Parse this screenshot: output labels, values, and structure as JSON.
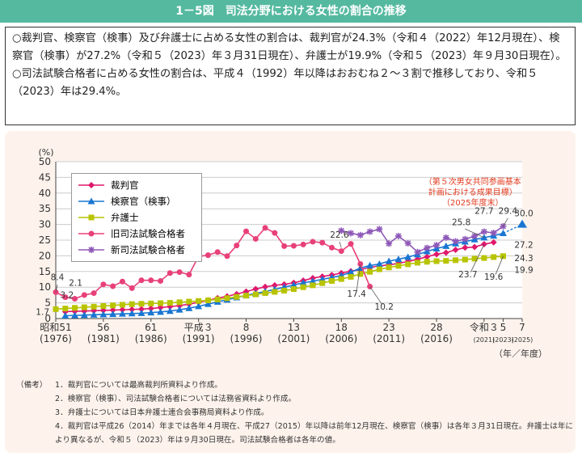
{
  "title": "1－5図　司法分野における女性の割合の推移",
  "summary": [
    "○裁判官、検察官（検事）及び弁護士に占める女性の割合は、裁判官が24.3%（令和４（2022）年12月現在）、検察官（検事）が27.2%（令和５（2023）年３月31日現在）、弁護士が19.9%（令和５（2023）年９月30日現在）。",
    "○司法試験合格者に占める女性の割合は、平成４（1992）年以降はおおむね２～３割で推移しており、令和５（2023）年は29.4%。"
  ],
  "notes": {
    "head": "（備考）",
    "items": [
      "1．裁判官については最高裁判所資料より作成。",
      "2．検察官（検事）、司法試験合格者については法務省資料より作成。",
      "3．弁護士については日本弁護士連合会事務局資料より作成。",
      "4．裁判官は平成26（2014）年までは各年４月現在、平成27（2015）年以降は前年12月現在、検察官（検事）は各年３月31日現在。弁護士は年により異なるが、令和５（2023）年は９月30日現在。司法試験合格者は各年の値。"
    ]
  },
  "chart_data": {
    "type": "line",
    "ylabel": "(%)",
    "xlabel": "（年／年度）",
    "ylim": [
      0,
      50
    ],
    "yticks": [
      0,
      5,
      10,
      15,
      20,
      25,
      30,
      35,
      40,
      45,
      50
    ],
    "xlim": [
      1976,
      2025
    ],
    "xticks": [
      {
        "x": 1976,
        "top": "昭和51",
        "bottom": "(1976)"
      },
      {
        "x": 1981,
        "top": "56",
        "bottom": "(1981)"
      },
      {
        "x": 1986,
        "top": "61",
        "bottom": "(1986)"
      },
      {
        "x": 1991,
        "top": "平成３",
        "bottom": "(1991)"
      },
      {
        "x": 1996,
        "top": "8",
        "bottom": "(1996)"
      },
      {
        "x": 2001,
        "top": "13",
        "bottom": "(2001)"
      },
      {
        "x": 2006,
        "top": "18",
        "bottom": "(2006)"
      },
      {
        "x": 2011,
        "top": "23",
        "bottom": "(2011)"
      },
      {
        "x": 2016,
        "top": "28",
        "bottom": "(2016)"
      },
      {
        "x": 2021,
        "top": "令和３",
        "bottom": "(2021)"
      },
      {
        "x": 2023,
        "top": "5",
        "bottom": "(2023)"
      },
      {
        "x": 2025,
        "top": "7",
        "bottom": "(2025)"
      }
    ],
    "series": [
      {
        "name": "裁判官",
        "color": "#e0186c",
        "marker": "diamond",
        "x": [
          1977,
          1978,
          1979,
          1980,
          1981,
          1982,
          1983,
          1984,
          1985,
          1986,
          1987,
          1988,
          1989,
          1990,
          1991,
          1992,
          1993,
          1994,
          1995,
          1996,
          1997,
          1998,
          1999,
          2000,
          2001,
          2002,
          2003,
          2004,
          2005,
          2006,
          2007,
          2008,
          2009,
          2010,
          2011,
          2012,
          2013,
          2014,
          2015,
          2016,
          2017,
          2018,
          2019,
          2020,
          2021,
          2022
        ],
        "values": [
          2.2,
          2.3,
          2.4,
          2.5,
          2.6,
          2.7,
          2.8,
          2.9,
          3.0,
          3.2,
          3.5,
          3.8,
          4.1,
          4.6,
          5.2,
          5.8,
          6.5,
          7.1,
          7.8,
          8.6,
          9.4,
          10.1,
          10.6,
          10.9,
          11.4,
          12.1,
          12.9,
          13.4,
          13.9,
          14.5,
          15.1,
          15.6,
          16.3,
          16.8,
          17.1,
          17.6,
          18.2,
          18.9,
          19.7,
          20.5,
          21.0,
          21.9,
          22.6,
          22.8,
          23.7,
          24.3
        ]
      },
      {
        "name": "検察官（検事）",
        "color": "#1976d2",
        "marker": "triangle",
        "x": [
          1977,
          1978,
          1979,
          1980,
          1981,
          1982,
          1983,
          1984,
          1985,
          1986,
          1987,
          1988,
          1989,
          1990,
          1991,
          1992,
          1993,
          1994,
          1995,
          1996,
          1997,
          1998,
          1999,
          2000,
          2001,
          2002,
          2003,
          2004,
          2005,
          2006,
          2007,
          2008,
          2009,
          2010,
          2011,
          2012,
          2013,
          2014,
          2015,
          2016,
          2017,
          2018,
          2019,
          2020,
          2021,
          2022,
          2023
        ],
        "values": [
          0.9,
          1.0,
          1.1,
          1.2,
          1.3,
          1.4,
          1.5,
          1.6,
          1.7,
          1.9,
          2.1,
          2.4,
          2.8,
          3.3,
          3.9,
          4.6,
          5.3,
          6.0,
          6.7,
          7.4,
          8.0,
          8.6,
          9.3,
          10.0,
          10.7,
          11.4,
          11.9,
          12.5,
          13.1,
          13.7,
          14.8,
          16.1,
          16.9,
          17.4,
          18.3,
          18.9,
          19.6,
          20.4,
          21.4,
          22.3,
          23.1,
          23.9,
          24.5,
          25.2,
          25.8,
          26.4,
          27.2
        ]
      },
      {
        "name": "弁護士",
        "color": "#b8c400",
        "marker": "square",
        "x": [
          1976,
          1977,
          1978,
          1979,
          1980,
          1981,
          1982,
          1983,
          1984,
          1985,
          1986,
          1987,
          1988,
          1989,
          1990,
          1991,
          1992,
          1993,
          1994,
          1995,
          1996,
          1997,
          1998,
          1999,
          2000,
          2001,
          2002,
          2003,
          2004,
          2005,
          2006,
          2007,
          2008,
          2009,
          2010,
          2011,
          2012,
          2013,
          2014,
          2015,
          2016,
          2017,
          2018,
          2019,
          2020,
          2021,
          2022,
          2023
        ],
        "values": [
          3.0,
          3.2,
          3.4,
          3.6,
          3.8,
          4.0,
          4.2,
          4.4,
          4.6,
          4.7,
          4.8,
          4.9,
          5.0,
          5.2,
          5.4,
          5.6,
          5.8,
          6.1,
          6.5,
          6.9,
          7.3,
          7.7,
          8.1,
          8.5,
          8.9,
          9.4,
          10.0,
          10.6,
          11.3,
          12.0,
          12.6,
          13.3,
          14.2,
          14.9,
          15.7,
          16.3,
          16.8,
          17.3,
          17.8,
          18.1,
          18.3,
          18.4,
          18.6,
          18.8,
          19.1,
          19.3,
          19.6,
          19.9
        ]
      },
      {
        "name": "旧司法試験合格者",
        "color": "#e8407a",
        "marker": "circle",
        "x": [
          1976,
          1977,
          1978,
          1979,
          1980,
          1981,
          1982,
          1983,
          1984,
          1985,
          1986,
          1987,
          1988,
          1989,
          1990,
          1991,
          1992,
          1993,
          1994,
          1995,
          1996,
          1997,
          1998,
          1999,
          2000,
          2001,
          2002,
          2003,
          2004,
          2005,
          2006,
          2007,
          2008,
          2009,
          2010
        ],
        "values": [
          8.4,
          6.8,
          6.3,
          7.5,
          8.1,
          10.9,
          10.3,
          11.8,
          9.7,
          12.2,
          12.2,
          12.0,
          14.5,
          14.8,
          14.0,
          19.8,
          20.2,
          21.2,
          19.9,
          23.3,
          27.8,
          25.4,
          28.9,
          27.3,
          23.1,
          23.2,
          23.6,
          24.5,
          24.2,
          22.6,
          21.5,
          23.8,
          17.4,
          10.2,
          null
        ]
      },
      {
        "name": "新司法試験合格者",
        "color": "#8e58b8",
        "marker": "star",
        "x": [
          2006,
          2007,
          2008,
          2009,
          2010,
          2011,
          2012,
          2013,
          2014,
          2015,
          2016,
          2017,
          2018,
          2019,
          2020,
          2021,
          2022,
          2023
        ],
        "values": [
          28.0,
          27.2,
          26.6,
          27.7,
          28.5,
          23.9,
          26.3,
          24.0,
          21.2,
          22.5,
          23.4,
          25.8,
          24.6,
          25.3,
          26.3,
          27.7,
          27.3,
          29.4
        ]
      }
    ],
    "target": {
      "x": 2025,
      "value": 30.0,
      "label": "30.0",
      "color": "#1976d2"
    },
    "target_note": [
      "（第５次男女共同参画基本",
      "計画における成果目標）",
      "（2025年度末）"
    ],
    "annotations": [
      {
        "text": "8.4"
      },
      {
        "text": "3.2"
      },
      {
        "text": "2.1"
      },
      {
        "text": "1.7"
      },
      {
        "text": "22.6"
      },
      {
        "text": "17.4"
      },
      {
        "text": "10.2"
      },
      {
        "text": "25.8"
      },
      {
        "text": "27.7"
      },
      {
        "text": "29.4"
      },
      {
        "text": "27.2"
      },
      {
        "text": "24.3"
      },
      {
        "text": "23.7"
      },
      {
        "text": "19.6"
      },
      {
        "text": "19.9"
      }
    ]
  },
  "colors": {
    "title_bg": "#55b9a0",
    "panel_bg": "#fdf3ec",
    "target_note": "#e23a1e"
  }
}
